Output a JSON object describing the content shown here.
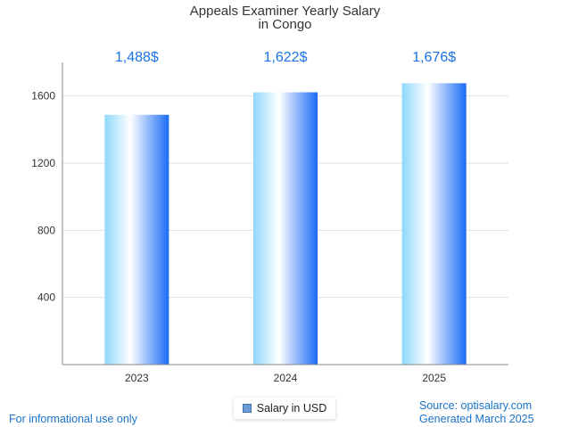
{
  "chart_data": {
    "type": "bar",
    "title": "Appeals Examiner Yearly Salary",
    "subtitle": "in Congo",
    "categories": [
      "2023",
      "2024",
      "2025"
    ],
    "series": [
      {
        "name": "Salary in USD",
        "values": [
          1488,
          1622,
          1676
        ],
        "labels": [
          "1,488$",
          "1,622$",
          "1,676$"
        ]
      }
    ],
    "yticks": [
      400,
      800,
      1200,
      1600
    ],
    "ylim": [
      0,
      1800
    ],
    "grid": true,
    "legend": "bottom-center",
    "colors": {
      "bar_light": "#ffffff",
      "bar_mid": "#8fd8fb",
      "bar_dark": "#1a6cf5",
      "label": "#1a73e8"
    }
  },
  "footer": {
    "disclaimer": "For informational use only",
    "source": "Source: optisalary.com",
    "generated": "Generated March 2025"
  }
}
